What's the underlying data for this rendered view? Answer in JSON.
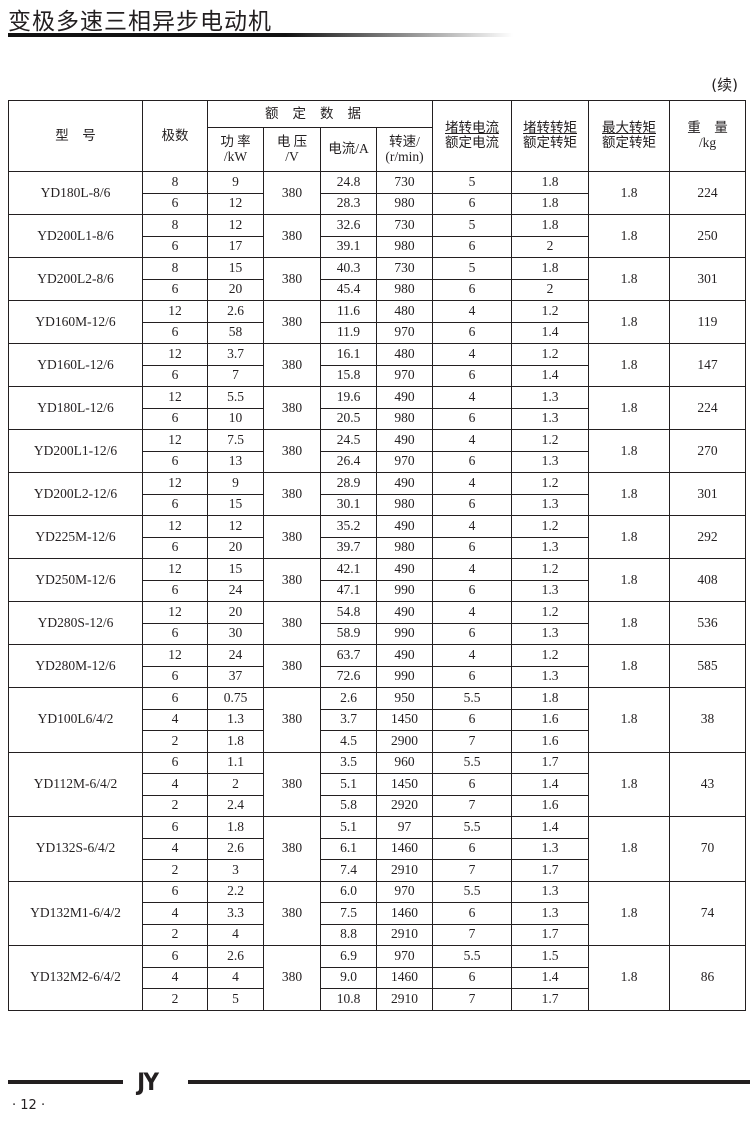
{
  "header": {
    "title": "变极多速三相异步电动机",
    "continued": "(续)"
  },
  "table": {
    "headers": {
      "model": "型　号",
      "poles": "极数",
      "rated_group": "额定数据",
      "power": [
        "功 率",
        "/kW"
      ],
      "voltage": [
        "电 压",
        "/V"
      ],
      "current": "电流/A",
      "speed": [
        "转速/",
        "(r/min)"
      ],
      "stall_current": [
        "堵转电流",
        "额定电流"
      ],
      "stall_torque": [
        "堵转转矩",
        "额定转矩"
      ],
      "max_torque": [
        "最大转矩",
        "额定转矩"
      ],
      "weight": [
        "重　量",
        "/kg"
      ]
    },
    "models": [
      {
        "model": "YD180L-8/6",
        "voltage": "380",
        "max_torque": "1.8",
        "weight": "224",
        "rows": [
          [
            "8",
            "9",
            "24.8",
            "730",
            "5",
            "1.8"
          ],
          [
            "6",
            "12",
            "28.3",
            "980",
            "6",
            "1.8"
          ]
        ]
      },
      {
        "model": "YD200L1-8/6",
        "voltage": "380",
        "max_torque": "1.8",
        "weight": "250",
        "rows": [
          [
            "8",
            "12",
            "32.6",
            "730",
            "5",
            "1.8"
          ],
          [
            "6",
            "17",
            "39.1",
            "980",
            "6",
            "2"
          ]
        ]
      },
      {
        "model": "YD200L2-8/6",
        "voltage": "380",
        "max_torque": "1.8",
        "weight": "301",
        "rows": [
          [
            "8",
            "15",
            "40.3",
            "730",
            "5",
            "1.8"
          ],
          [
            "6",
            "20",
            "45.4",
            "980",
            "6",
            "2"
          ]
        ]
      },
      {
        "model": "YD160M-12/6",
        "voltage": "380",
        "max_torque": "1.8",
        "weight": "119",
        "rows": [
          [
            "12",
            "2.6",
            "11.6",
            "480",
            "4",
            "1.2"
          ],
          [
            "6",
            "58",
            "11.9",
            "970",
            "6",
            "1.4"
          ]
        ]
      },
      {
        "model": "YD160L-12/6",
        "voltage": "380",
        "max_torque": "1.8",
        "weight": "147",
        "rows": [
          [
            "12",
            "3.7",
            "16.1",
            "480",
            "4",
            "1.2"
          ],
          [
            "6",
            "7",
            "15.8",
            "970",
            "6",
            "1.4"
          ]
        ]
      },
      {
        "model": "YD180L-12/6",
        "voltage": "380",
        "max_torque": "1.8",
        "weight": "224",
        "rows": [
          [
            "12",
            "5.5",
            "19.6",
            "490",
            "4",
            "1.3"
          ],
          [
            "6",
            "10",
            "20.5",
            "980",
            "6",
            "1.3"
          ]
        ]
      },
      {
        "model": "YD200L1-12/6",
        "voltage": "380",
        "max_torque": "1.8",
        "weight": "270",
        "rows": [
          [
            "12",
            "7.5",
            "24.5",
            "490",
            "4",
            "1.2"
          ],
          [
            "6",
            "13",
            "26.4",
            "970",
            "6",
            "1.3"
          ]
        ]
      },
      {
        "model": "YD200L2-12/6",
        "voltage": "380",
        "max_torque": "1.8",
        "weight": "301",
        "rows": [
          [
            "12",
            "9",
            "28.9",
            "490",
            "4",
            "1.2"
          ],
          [
            "6",
            "15",
            "30.1",
            "980",
            "6",
            "1.3"
          ]
        ]
      },
      {
        "model": "YD225M-12/6",
        "voltage": "380",
        "max_torque": "1.8",
        "weight": "292",
        "rows": [
          [
            "12",
            "12",
            "35.2",
            "490",
            "4",
            "1.2"
          ],
          [
            "6",
            "20",
            "39.7",
            "980",
            "6",
            "1.3"
          ]
        ]
      },
      {
        "model": "YD250M-12/6",
        "voltage": "380",
        "max_torque": "1.8",
        "weight": "408",
        "rows": [
          [
            "12",
            "15",
            "42.1",
            "490",
            "4",
            "1.2"
          ],
          [
            "6",
            "24",
            "47.1",
            "990",
            "6",
            "1.3"
          ]
        ]
      },
      {
        "model": "YD280S-12/6",
        "voltage": "380",
        "max_torque": "1.8",
        "weight": "536",
        "rows": [
          [
            "12",
            "20",
            "54.8",
            "490",
            "4",
            "1.2"
          ],
          [
            "6",
            "30",
            "58.9",
            "990",
            "6",
            "1.3"
          ]
        ]
      },
      {
        "model": "YD280M-12/6",
        "voltage": "380",
        "max_torque": "1.8",
        "weight": "585",
        "rows": [
          [
            "12",
            "24",
            "63.7",
            "490",
            "4",
            "1.2"
          ],
          [
            "6",
            "37",
            "72.6",
            "990",
            "6",
            "1.3"
          ]
        ]
      },
      {
        "model": "YD100L6/4/2",
        "voltage": "380",
        "max_torque": "1.8",
        "weight": "38",
        "rows": [
          [
            "6",
            "0.75",
            "2.6",
            "950",
            "5.5",
            "1.8"
          ],
          [
            "4",
            "1.3",
            "3.7",
            "1450",
            "6",
            "1.6"
          ],
          [
            "2",
            "1.8",
            "4.5",
            "2900",
            "7",
            "1.6"
          ]
        ]
      },
      {
        "model": "YD112M-6/4/2",
        "voltage": "380",
        "max_torque": "1.8",
        "weight": "43",
        "rows": [
          [
            "6",
            "1.1",
            "3.5",
            "960",
            "5.5",
            "1.7"
          ],
          [
            "4",
            "2",
            "5.1",
            "1450",
            "6",
            "1.4"
          ],
          [
            "2",
            "2.4",
            "5.8",
            "2920",
            "7",
            "1.6"
          ]
        ]
      },
      {
        "model": "YD132S-6/4/2",
        "voltage": "380",
        "max_torque": "1.8",
        "weight": "70",
        "rows": [
          [
            "6",
            "1.8",
            "5.1",
            "97",
            "5.5",
            "1.4"
          ],
          [
            "4",
            "2.6",
            "6.1",
            "1460",
            "6",
            "1.3"
          ],
          [
            "2",
            "3",
            "7.4",
            "2910",
            "7",
            "1.7"
          ]
        ]
      },
      {
        "model": "YD132M1-6/4/2",
        "voltage": "380",
        "max_torque": "1.8",
        "weight": "74",
        "rows": [
          [
            "6",
            "2.2",
            "6.0",
            "970",
            "5.5",
            "1.3"
          ],
          [
            "4",
            "3.3",
            "7.5",
            "1460",
            "6",
            "1.3"
          ],
          [
            "2",
            "4",
            "8.8",
            "2910",
            "7",
            "1.7"
          ]
        ]
      },
      {
        "model": "YD132M2-6/4/2",
        "voltage": "380",
        "max_torque": "1.8",
        "weight": "86",
        "rows": [
          [
            "6",
            "2.6",
            "6.9",
            "970",
            "5.5",
            "1.5"
          ],
          [
            "4",
            "4",
            "9.0",
            "1460",
            "6",
            "1.4"
          ],
          [
            "2",
            "5",
            "10.8",
            "2910",
            "7",
            "1.7"
          ]
        ]
      }
    ]
  },
  "footer": {
    "logo": "JY",
    "page": "· 12 ·"
  }
}
